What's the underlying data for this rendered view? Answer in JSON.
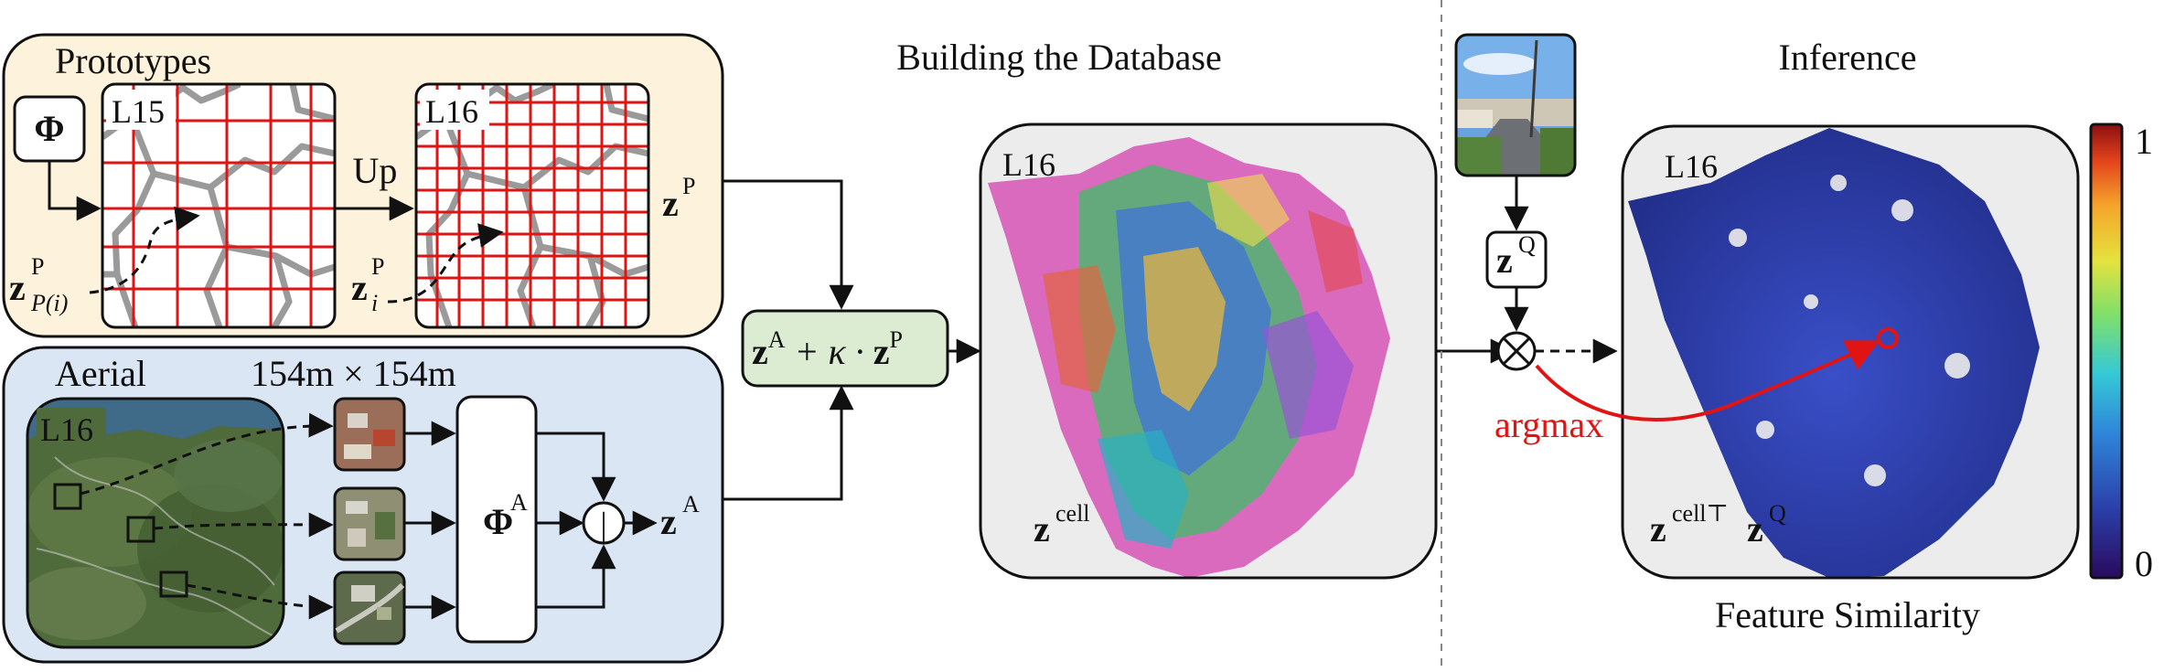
{
  "sections": {
    "prototypes_title": "Prototypes",
    "aerial_title": "Aerial",
    "aerial_size": "154m × 154m",
    "building_title": "Building the Database",
    "inference_title": "Inference",
    "feature_similarity": "Feature Similarity"
  },
  "prototypes": {
    "phi": "Φ",
    "level_a": "L15",
    "level_b": "L16",
    "up": "Up",
    "z_parent": {
      "base": "z",
      "sup": "P",
      "sub": "P(i)"
    },
    "z_i": {
      "base": "z",
      "sup": "P",
      "sub": "i"
    },
    "z_p": {
      "base": "z",
      "sup": "P"
    }
  },
  "aerial": {
    "level": "L16",
    "phi_a": {
      "base": "Φ",
      "sup": "A"
    },
    "z_a": {
      "base": "z",
      "sup": "A"
    },
    "pool_symbol": "|"
  },
  "fusion": {
    "z": "z",
    "sup_a": "A",
    "plus_kappa": " + κ · ",
    "sup_p": "P"
  },
  "database": {
    "level": "L16",
    "z_cell": {
      "base": "z",
      "sup": "cell"
    }
  },
  "inference": {
    "z_q": {
      "base": "z",
      "sup": "Q"
    },
    "multiply_symbol": "⊗",
    "argmax": "argmax",
    "level": "L16",
    "similarity_label": {
      "base_a": "z",
      "sup_a": "cell⊤",
      "base_b": "z",
      "sup_b": "Q"
    }
  },
  "colorbar": {
    "max_label": "1",
    "min_label": "0"
  },
  "colors": {
    "prototypes_bg": "#fdf2dc",
    "aerial_bg": "#dbe6f5",
    "fusion_bg": "#dcecd3",
    "grid_red": "#e11414",
    "border_gray": "#b4b4b4",
    "map_sat": "#4d6a3a",
    "map_blue": "#2a3ea0",
    "highlight_red": "#e11414"
  },
  "icons": [
    "street-photo-icon",
    "aerial-tile-icon",
    "circle-times-icon",
    "colorbar-icon"
  ]
}
